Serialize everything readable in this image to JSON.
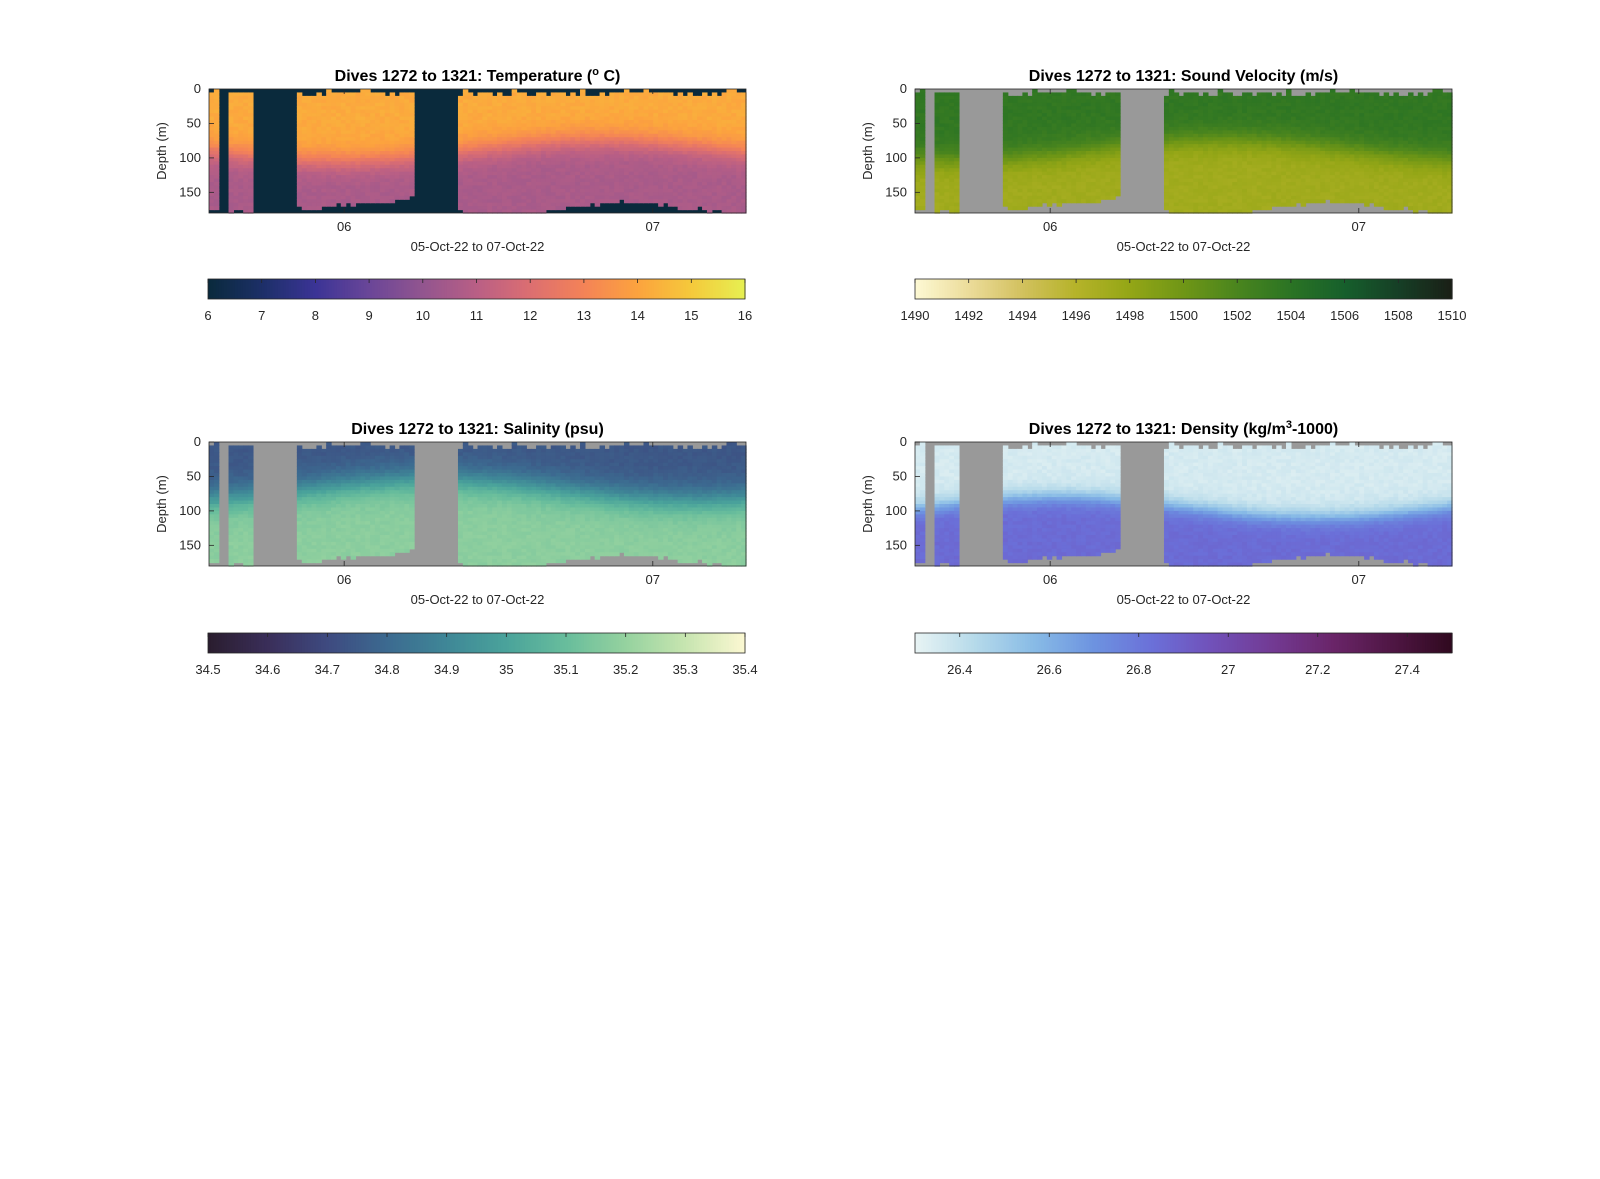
{
  "chart_data": [
    {
      "type": "heatmap",
      "title": "Dives 1272 to 1321: Temperature (",
      "title_sup": "o",
      "title_end": " C)",
      "xlabel": "05-Oct-22 to 07-Oct-22",
      "ylabel": "Depth (m)",
      "x_tick_labels": [
        "06",
        "07"
      ],
      "x_ticks": [
        0.438,
        1.438
      ],
      "x_range": [
        0.0,
        1.74
      ],
      "ylim": [
        0,
        180
      ],
      "y_ticks": [
        0,
        50,
        100,
        150
      ],
      "nodata_color": "#0a2a3c",
      "colorbar": {
        "min": 6,
        "max": 16,
        "ticks": [
          6,
          7,
          8,
          9,
          10,
          11,
          12,
          13,
          14,
          15,
          16
        ],
        "labels": [
          "6",
          "7",
          "8",
          "9",
          "10",
          "11",
          "12",
          "13",
          "14",
          "15",
          "16"
        ],
        "colors": [
          "#0a2a3c",
          "#1c2f67",
          "#3b3496",
          "#6a4698",
          "#92558f",
          "#b95f85",
          "#dc6e71",
          "#f48357",
          "#fca33e",
          "#f5c93b",
          "#e6f052"
        ]
      },
      "field": {
        "surface_value": 14.2,
        "deep_value": 10.6,
        "thermocline_depth": 90,
        "width": 40
      }
    },
    {
      "type": "heatmap",
      "title": "Dives 1272 to 1321: Sound Velocity (m/s)",
      "xlabel": "05-Oct-22 to 07-Oct-22",
      "ylabel": "Depth (m)",
      "x_tick_labels": [
        "06",
        "07"
      ],
      "x_ticks": [
        0.438,
        1.438
      ],
      "x_range": [
        0.0,
        1.74
      ],
      "ylim": [
        0,
        180
      ],
      "y_ticks": [
        0,
        50,
        100,
        150
      ],
      "nodata_color": "#999999",
      "colorbar": {
        "min": 1490,
        "max": 1510,
        "ticks": [
          1490,
          1492,
          1494,
          1496,
          1498,
          1500,
          1502,
          1504,
          1506,
          1508,
          1510
        ],
        "labels": [
          "1490",
          "1492",
          "1494",
          "1496",
          "1498",
          "1500",
          "1502",
          "1504",
          "1506",
          "1508",
          "1510"
        ],
        "colors": [
          "#fdf9d4",
          "#ecdc9a",
          "#d2c15e",
          "#b5b329",
          "#94a616",
          "#6f9616",
          "#4a851e",
          "#2b7424",
          "#165f2c",
          "#163f26",
          "#1a1f16"
        ]
      },
      "field": {
        "surface_value": 1503.6,
        "deep_value": 1497.2,
        "thermocline_depth": 88,
        "width": 40
      }
    },
    {
      "type": "heatmap",
      "title": "Dives 1272 to 1321: Salinity (psu)",
      "xlabel": "05-Oct-22 to 07-Oct-22",
      "ylabel": "Depth (m)",
      "x_tick_labels": [
        "06",
        "07"
      ],
      "x_ticks": [
        0.438,
        1.438
      ],
      "x_range": [
        0.0,
        1.74
      ],
      "ylim": [
        0,
        180
      ],
      "y_ticks": [
        0,
        50,
        100,
        150
      ],
      "nodata_color": "#999999",
      "colorbar": {
        "min": 34.5,
        "max": 35.4,
        "ticks": [
          34.5,
          34.6,
          34.7,
          34.8,
          34.9,
          35,
          35.1,
          35.2,
          35.3,
          35.4
        ],
        "labels": [
          "34.5",
          "34.6",
          "34.7",
          "34.8",
          "34.9",
          "35",
          "35.1",
          "35.2",
          "35.3",
          "35.4"
        ],
        "colors": [
          "#2a1d2e",
          "#3a2e59",
          "#3e4a80",
          "#3c6a90",
          "#3f8797",
          "#4aa39b",
          "#68bd9c",
          "#95d29f",
          "#c7e5b0",
          "#fcf8d2"
        ]
      },
      "field": {
        "surface_value": 34.74,
        "deep_value": 35.18,
        "thermocline_depth": 70,
        "width": 50
      }
    },
    {
      "type": "heatmap",
      "title": "Dives 1272 to 1321: Density (kg/m",
      "title_sup": "3",
      "title_end": "-1000)",
      "xlabel": "05-Oct-22 to 07-Oct-22",
      "ylabel": "Depth (m)",
      "x_tick_labels": [
        "06",
        "07"
      ],
      "x_ticks": [
        0.438,
        1.438
      ],
      "x_range": [
        0.0,
        1.74
      ],
      "ylim": [
        0,
        180
      ],
      "y_ticks": [
        0,
        50,
        100,
        150
      ],
      "nodata_color": "#999999",
      "colorbar": {
        "min": 26.3,
        "max": 27.5,
        "ticks": [
          26.4,
          26.6,
          26.8,
          27,
          27.2,
          27.4
        ],
        "labels": [
          "26.4",
          "26.6",
          "26.8",
          "27",
          "27.2",
          "27.4"
        ],
        "colors": [
          "#e8f4f4",
          "#b6daea",
          "#88bbe6",
          "#6d93e0",
          "#6b6fd8",
          "#7150b8",
          "#723a93",
          "#6a2569",
          "#4f1644",
          "#30091f"
        ]
      },
      "field": {
        "surface_value": 26.35,
        "deep_value": 26.85,
        "thermocline_depth": 95,
        "width": 30
      }
    }
  ]
}
